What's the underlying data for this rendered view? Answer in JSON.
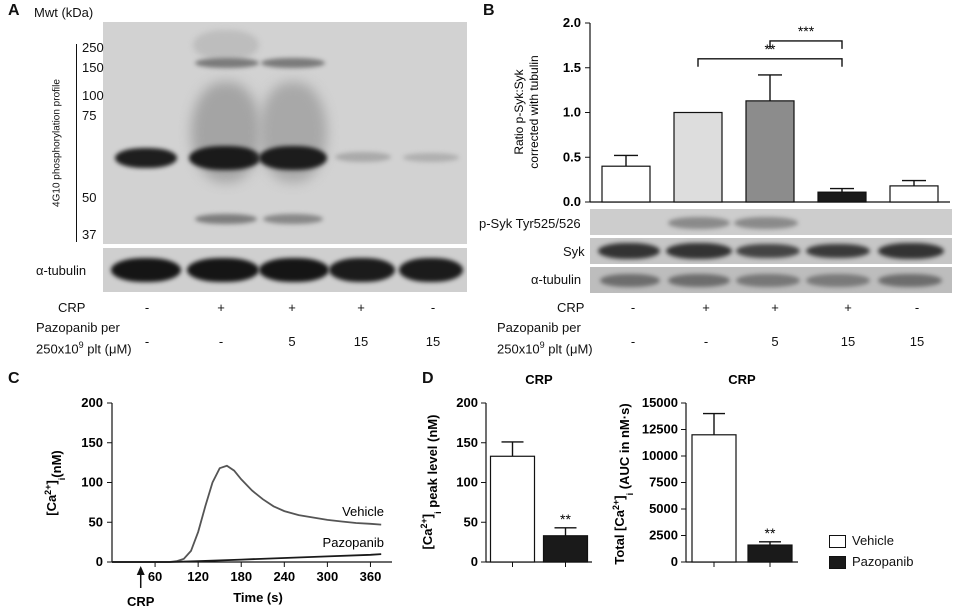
{
  "panelA": {
    "letter": "A",
    "mwt_label": "Mwt (kDa)",
    "markers": [
      "250",
      "150",
      "100",
      "75",
      "50",
      "37"
    ],
    "vertical_label": "4G10 phosphorylation profile",
    "tubulin_label": "α-tubulin",
    "crp_label": "CRP",
    "crp_values": [
      "-",
      "+",
      "+",
      "+",
      "-"
    ],
    "pazo_label_line1": "Pazopanib per",
    "pazo_label_line2": "250x10",
    "pazo_label_exp": "9",
    "pazo_label_tail": " plt (μM)",
    "pazo_values": [
      "-",
      "-",
      "5",
      "15",
      "15"
    ]
  },
  "panelB": {
    "letter": "B",
    "blot_labels": [
      "p-Syk Tyr525/526",
      "Syk",
      "α-tubulin"
    ],
    "crp_label": "CRP",
    "crp_values": [
      "-",
      "+",
      "+",
      "+",
      "-"
    ],
    "pazo_label_line1": "Pazopanib per",
    "pazo_label_line2": "250x10",
    "pazo_label_exp": "9",
    "pazo_label_tail": " plt (μM)",
    "pazo_values": [
      "-",
      "-",
      "5",
      "15",
      "15"
    ]
  },
  "panelC": {
    "letter": "C"
  },
  "panelD": {
    "letter": "D",
    "legend": {
      "vehicle": "Vehicle",
      "pazopanib": "Pazopanib"
    }
  },
  "colors": {
    "black": "#1a1a1a",
    "white": "#ffffff",
    "lightgray": "#dddddd",
    "darkgray": "#8c8c8c",
    "trace": "#555555"
  },
  "chart_data": [
    {
      "id": "B",
      "type": "bar",
      "ylabel": "Ratio p-Syk:Syk corrected with tubulin",
      "ylim": [
        0,
        2.0
      ],
      "yticks": [
        "0.0",
        "0.5",
        "1.0",
        "1.5",
        "2.0"
      ],
      "categories": [
        "-/-",
        "+/-",
        "+/5",
        "+/15",
        "-/15"
      ],
      "values": [
        0.4,
        1.0,
        1.13,
        0.11,
        0.18
      ],
      "errors": [
        0.12,
        0.0,
        0.29,
        0.04,
        0.06
      ],
      "bar_colors": [
        "#ffffff",
        "#dddddd",
        "#8c8c8c",
        "#1a1a1a",
        "#ffffff"
      ],
      "significance": [
        {
          "from": 2,
          "to": 3,
          "y": 1.8,
          "label": "***"
        },
        {
          "from": 1,
          "to": 3,
          "y": 1.6,
          "label": "**"
        }
      ]
    },
    {
      "id": "C",
      "type": "line",
      "xlabel": "Time (s)",
      "ylabel_main": "[Ca",
      "ylabel_sup": "2+",
      "ylabel_close": "]",
      "ylabel_sub": "i",
      "ylabel_unit": "(nM)",
      "xlim": [
        0,
        390
      ],
      "ylim": [
        0,
        200
      ],
      "xticks": [
        60,
        120,
        180,
        240,
        300,
        360
      ],
      "yticks": [
        0,
        50,
        100,
        150,
        200
      ],
      "arrow_label": "CRP",
      "arrow_x": 40,
      "series": [
        {
          "name": "Vehicle",
          "x": [
            0,
            60,
            80,
            90,
            100,
            110,
            120,
            130,
            140,
            150,
            160,
            170,
            180,
            195,
            210,
            225,
            240,
            260,
            280,
            300,
            320,
            340,
            360,
            375
          ],
          "y": [
            0,
            0,
            0,
            1,
            4,
            14,
            38,
            70,
            100,
            118,
            121,
            115,
            104,
            90,
            79,
            70,
            64,
            59,
            56,
            53,
            51,
            49,
            48,
            47
          ]
        },
        {
          "name": "Pazopanib",
          "x": [
            0,
            80,
            120,
            180,
            240,
            300,
            360,
            375
          ],
          "y": [
            0,
            0,
            1,
            3,
            5,
            7,
            9,
            10
          ]
        }
      ]
    },
    {
      "id": "D1",
      "type": "bar",
      "title": "CRP",
      "ylabel_main": "[Ca",
      "ylabel_sup": "2+",
      "ylabel_close": "]",
      "ylabel_sub": "i",
      "ylabel_unit": " peak level (nM)",
      "ylim": [
        0,
        200
      ],
      "yticks": [
        0,
        50,
        100,
        150,
        200
      ],
      "categories": [
        "Vehicle",
        "Pazopanib"
      ],
      "values": [
        133,
        33
      ],
      "errors": [
        18,
        10
      ],
      "annotations": [
        "",
        "**"
      ]
    },
    {
      "id": "D2",
      "type": "bar",
      "title": "CRP",
      "ylabel_main": "Total [Ca",
      "ylabel_sup": "2+",
      "ylabel_close": "]",
      "ylabel_sub": "i",
      "ylabel_unit": " (AUC in nM·s)",
      "ylim": [
        0,
        15000
      ],
      "yticks": [
        0,
        2500,
        5000,
        7500,
        10000,
        12500,
        15000
      ],
      "categories": [
        "Vehicle",
        "Pazopanib"
      ],
      "values": [
        12000,
        1600
      ],
      "errors": [
        2000,
        300
      ],
      "annotations": [
        "",
        "**"
      ]
    }
  ]
}
